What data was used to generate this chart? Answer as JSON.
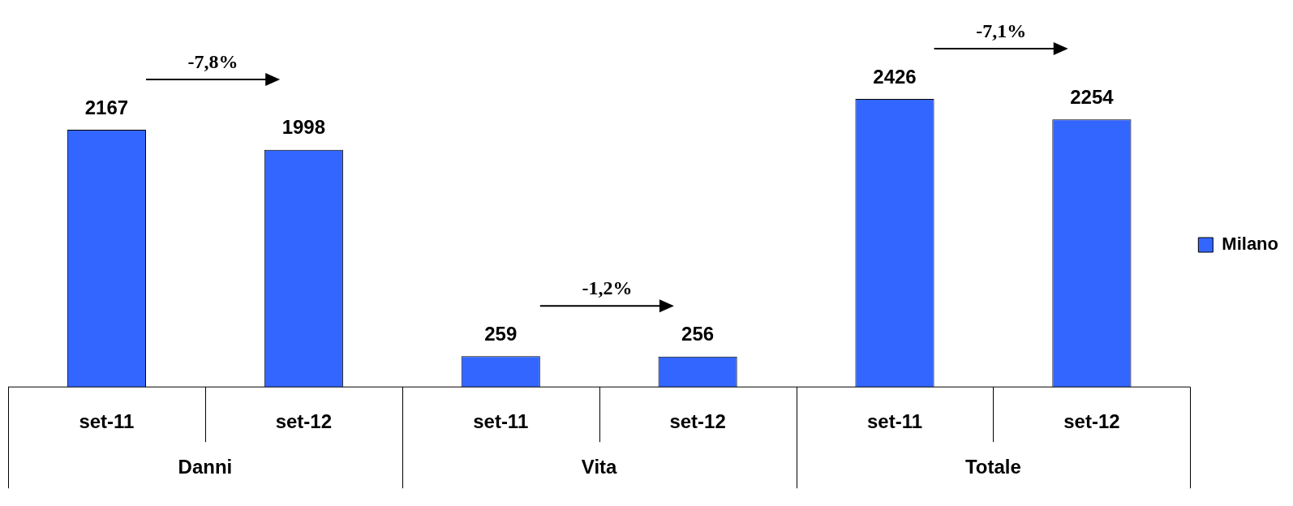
{
  "chart_data": {
    "type": "bar",
    "categories": [
      "set-11",
      "set-12",
      "set-11",
      "set-12",
      "set-11",
      "set-12"
    ],
    "series": [
      {
        "name": "Milano",
        "color": "#3366ff",
        "values": [
          2167,
          1998,
          259,
          256,
          2426,
          2254
        ]
      }
    ],
    "data_labels": true,
    "legend": "right",
    "grid": false,
    "annotations": [
      "-7,8%",
      "-1,2%",
      "-7,1%",
      "Danni",
      "Vita",
      "Totale"
    ]
  }
}
